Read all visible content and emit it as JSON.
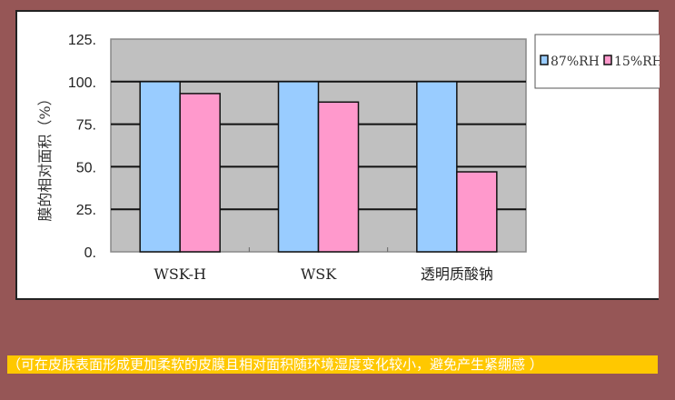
{
  "chart_data": {
    "type": "bar",
    "categories": [
      "WSK-H",
      "WSK",
      "透明质酸钠"
    ],
    "series": [
      {
        "name": "87%RH",
        "values": [
          100,
          100,
          100
        ],
        "color": "#99ccff"
      },
      {
        "name": "15%RH",
        "values": [
          93,
          88,
          47
        ],
        "color": "#ff99cc"
      }
    ],
    "ylabel": "膜的相对面积（%）",
    "ylim": [
      0,
      125
    ],
    "yticks": [
      0,
      25,
      50,
      75,
      100,
      125
    ],
    "ytick_labels": [
      "0.",
      "25.",
      "50.",
      "75.",
      "100.",
      "125."
    ],
    "grid": true,
    "plot_background": "#c0c0c0",
    "legend_position": "right"
  },
  "caption": "（可在皮肤表面形成更加柔软的皮膜且相对面积随环境湿度变化较小，避免产生紧绷感 ）"
}
